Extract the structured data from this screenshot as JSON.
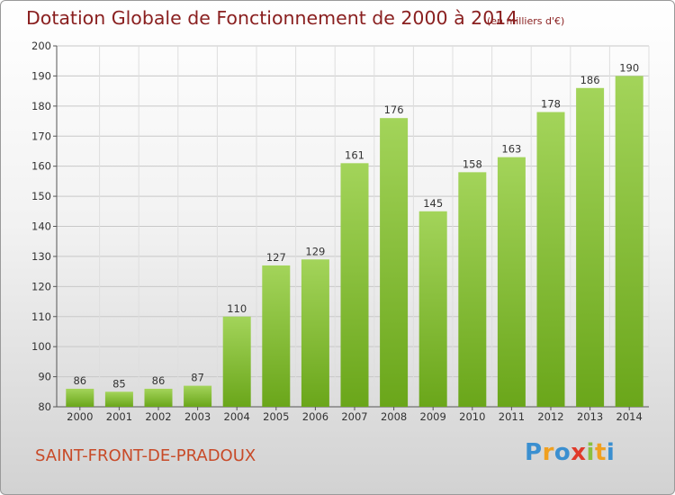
{
  "header": {
    "title": "Dotation Globale de Fonctionnement de 2000 à 2014",
    "unit": "(en milliers d'€)"
  },
  "footer": {
    "commune": "SAINT-FRONT-DE-PRADOUX",
    "logo_letters": [
      "P",
      "r",
      "o",
      "x",
      "i",
      "t",
      "i"
    ]
  },
  "colors": {
    "title": "#8a2020",
    "commune": "#c84a28",
    "bar_light": "#a3d45a",
    "bar_dark": "#6aa61a",
    "logo": [
      "#3a8fd0",
      "#f0a020",
      "#3a8fd0",
      "#e03a2a",
      "#8ac040",
      "#f0a020",
      "#3a8fd0"
    ]
  },
  "chart_data": {
    "type": "bar",
    "categories": [
      "2000",
      "2001",
      "2002",
      "2003",
      "2004",
      "2005",
      "2006",
      "2007",
      "2008",
      "2009",
      "2010",
      "2011",
      "2012",
      "2013",
      "2014"
    ],
    "values": [
      86,
      85,
      86,
      87,
      110,
      127,
      129,
      161,
      176,
      145,
      158,
      163,
      178,
      186,
      190
    ],
    "title": "Dotation Globale de Fonctionnement de 2000 à 2014",
    "subtitle": "(en milliers d'€)",
    "xlabel": "",
    "ylabel": "",
    "ylim": [
      80,
      200
    ],
    "yticks": [
      80,
      90,
      100,
      110,
      120,
      130,
      140,
      150,
      160,
      170,
      180,
      190,
      200
    ],
    "grid": true
  }
}
